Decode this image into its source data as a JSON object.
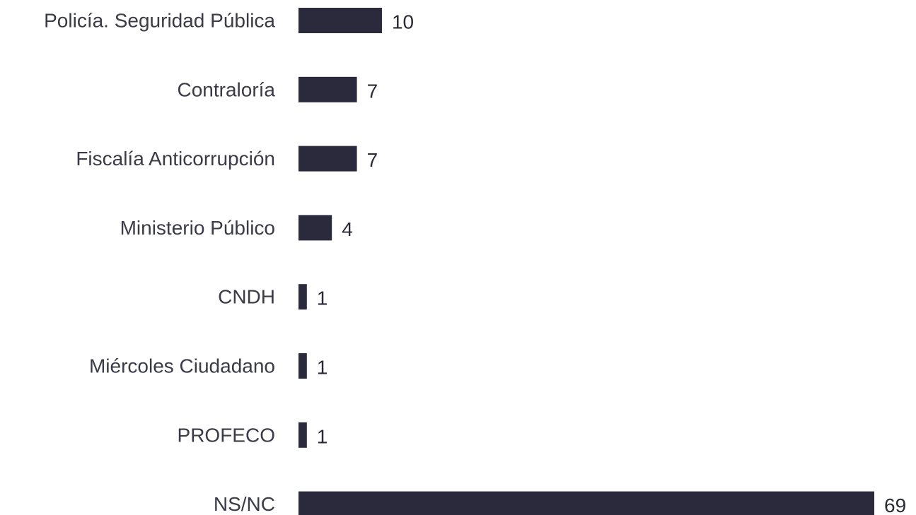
{
  "chart_data": {
    "type": "bar",
    "orientation": "horizontal",
    "categories": [
      "Policía. Seguridad Pública",
      "Contraloría",
      "Fiscalía Anticorrupción",
      "Ministerio Público",
      "CNDH",
      "Miércoles Ciudadano",
      "PROFECO",
      "NS/NC"
    ],
    "values": [
      10,
      7,
      7,
      4,
      1,
      1,
      1,
      69
    ],
    "xlim": [
      0,
      69
    ],
    "grid": false,
    "legend": "none",
    "bar_color": "#2a2a3c",
    "label_color": "#3b3b48"
  }
}
